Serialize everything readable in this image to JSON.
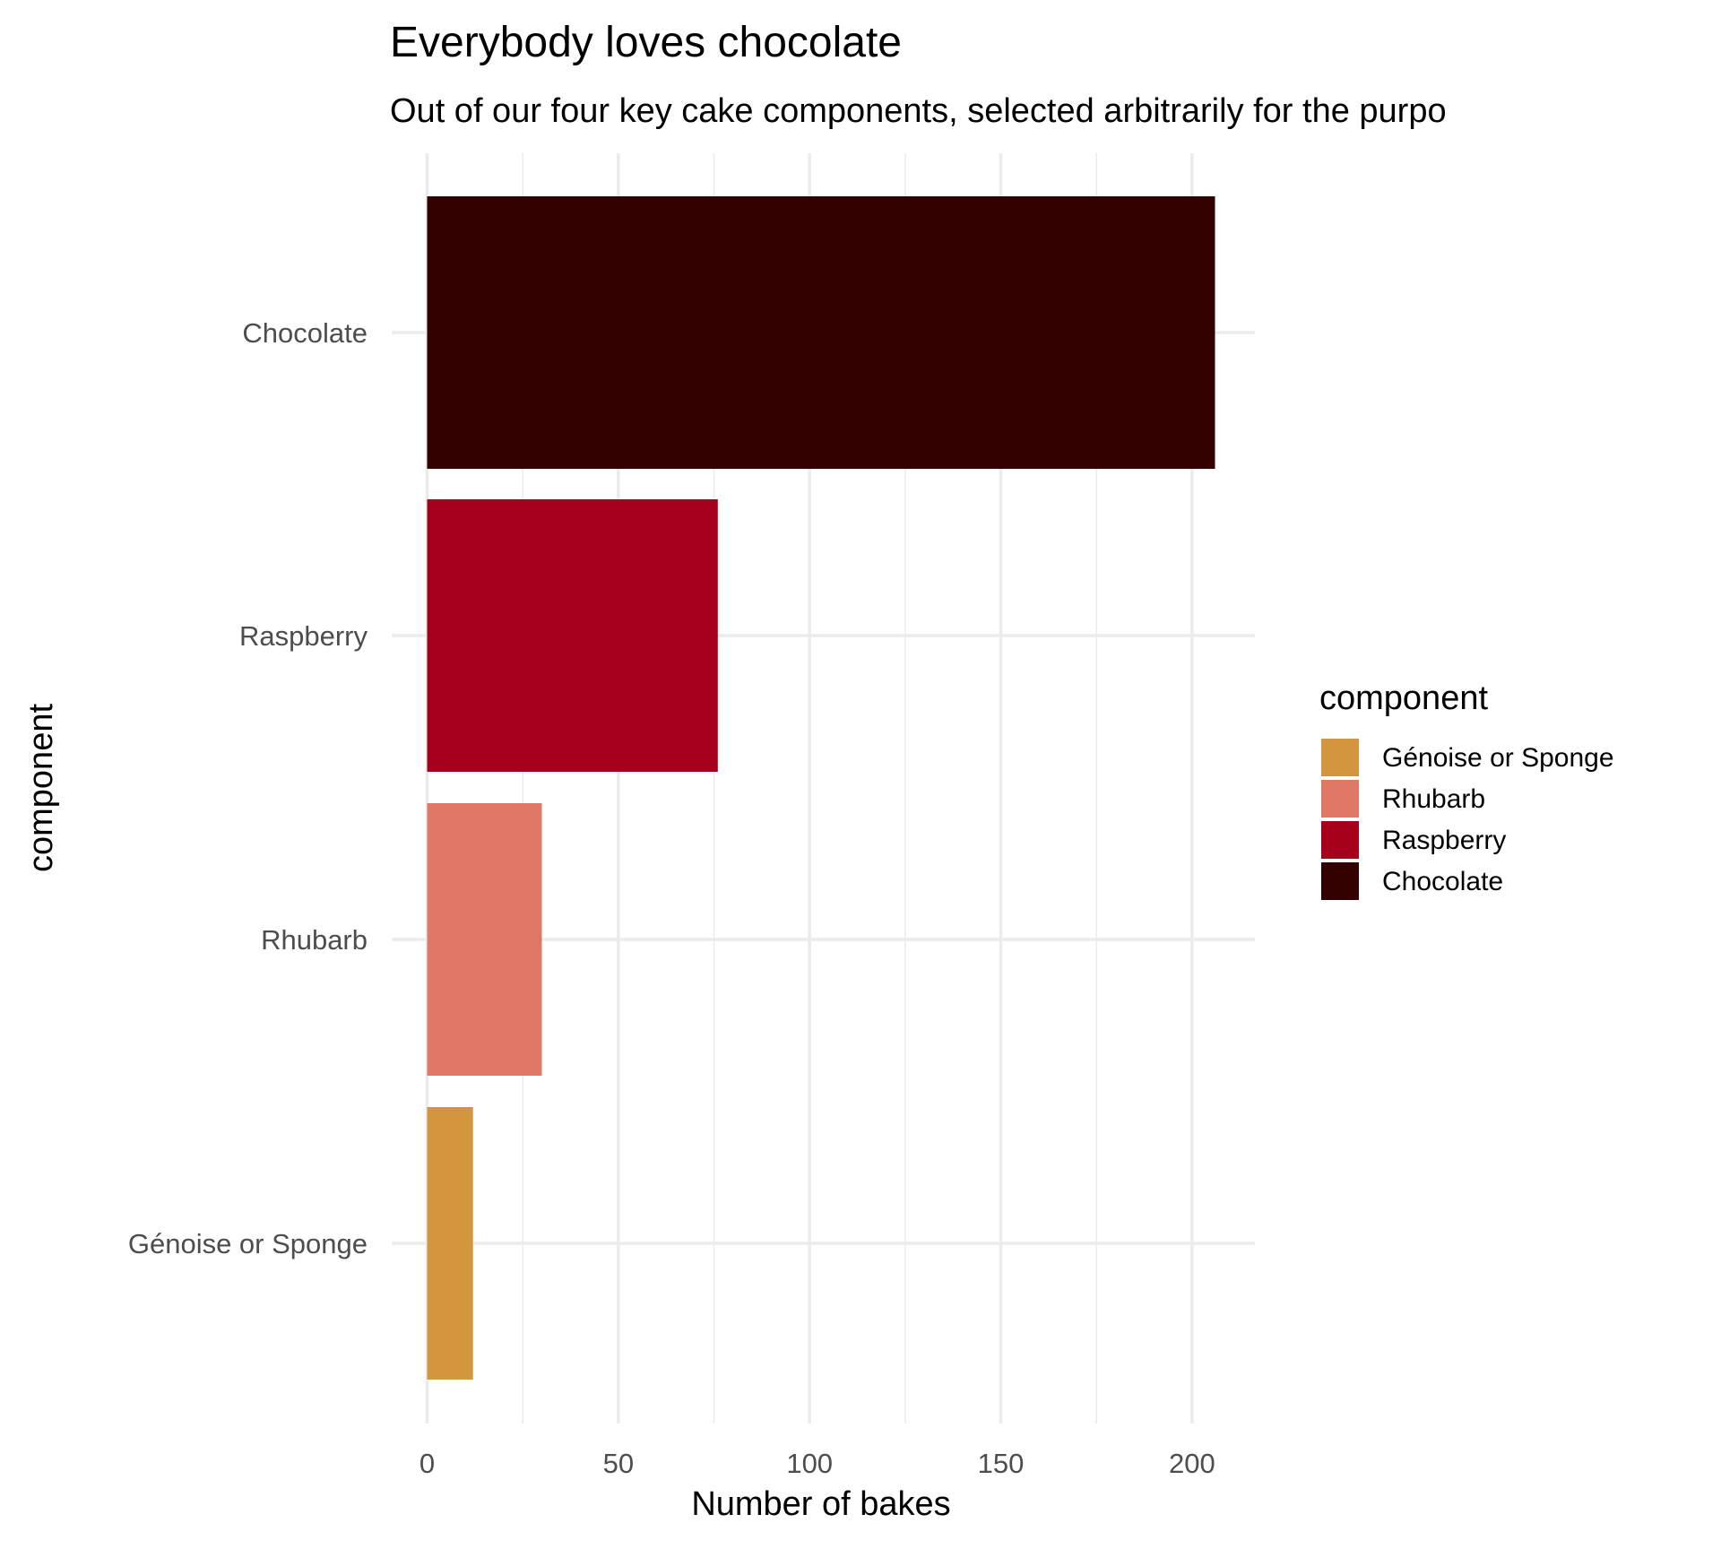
{
  "chart_data": {
    "type": "bar",
    "orientation": "horizontal",
    "title": "Everybody loves chocolate",
    "subtitle": "Out of our four key cake components, selected arbitrarily for the purpo",
    "xlabel": "Number of bakes",
    "ylabel": "component",
    "categories": [
      "Génoise or Sponge",
      "Rhubarb",
      "Raspberry",
      "Chocolate"
    ],
    "values": [
      12,
      30,
      76,
      206
    ],
    "colors": [
      "#D3953D",
      "#E07868",
      "#A7001C",
      "#330000"
    ],
    "xlim": [
      0,
      217
    ],
    "xticks": [
      0,
      50,
      100,
      150,
      200
    ],
    "xtick_labels": [
      "0",
      "50",
      "100",
      "150",
      "200"
    ],
    "grid": true,
    "legend": {
      "title": "component",
      "placement": "right",
      "entries": [
        "Génoise or Sponge",
        "Rhubarb",
        "Raspberry",
        "Chocolate"
      ]
    }
  }
}
